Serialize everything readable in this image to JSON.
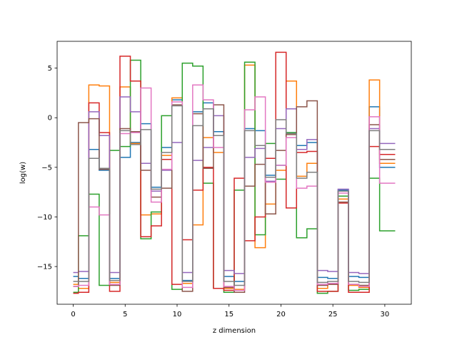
{
  "chart_data": {
    "type": "line",
    "drawstyle": "steps-mid",
    "title": "",
    "xlabel": "z dimension",
    "ylabel": "log(w)",
    "xlim": [
      -1.55,
      32.55
    ],
    "ylim": [
      -18.8,
      7.7
    ],
    "xticks": [
      0,
      5,
      10,
      15,
      20,
      25,
      30
    ],
    "yticks": [
      -15,
      -10,
      -5,
      0,
      5
    ],
    "ytick_labels": [
      "−15",
      "−10",
      "−5",
      "0",
      "5"
    ],
    "grid": false,
    "x": [
      0,
      1,
      2,
      3,
      4,
      5,
      6,
      7,
      8,
      9,
      10,
      11,
      12,
      13,
      14,
      15,
      16,
      17,
      18,
      19,
      20,
      21,
      22,
      23,
      24,
      25,
      26,
      27,
      28,
      29,
      30,
      31
    ],
    "series": [
      {
        "color": "#1f77b4",
        "values": [
          -16.0,
          -16.2,
          -3.2,
          -5.3,
          -16.2,
          -4.0,
          -2.5,
          -0.6,
          -7.0,
          -3.0,
          1.8,
          -16.4,
          0.6,
          1.5,
          -1.4,
          -16.0,
          -16.5,
          -1.1,
          -1.3,
          -5.8,
          -4.8,
          -1.5,
          -2.8,
          -2.5,
          -16.1,
          -16.2,
          -7.3,
          -16.0,
          -16.1,
          1.1,
          -5.0,
          -5.0
        ]
      },
      {
        "color": "#ff7f0e",
        "values": [
          -16.8,
          -17.2,
          3.3,
          3.2,
          -16.6,
          3.1,
          -2.6,
          -9.8,
          -9.7,
          -3.8,
          2.0,
          -16.7,
          -10.8,
          -2.0,
          -3.5,
          -17.2,
          -17.3,
          5.3,
          -13.1,
          -8.7,
          -5.3,
          3.7,
          -5.9,
          -4.6,
          -17.2,
          -16.8,
          -8.2,
          -16.9,
          -17.1,
          3.8,
          -4.6,
          -4.6
        ]
      },
      {
        "color": "#2ca02c",
        "values": [
          -17.6,
          -11.9,
          -7.7,
          -16.9,
          -3.3,
          -2.9,
          5.8,
          -12.2,
          -9.5,
          0.2,
          -17.3,
          5.5,
          5.2,
          -6.6,
          -17.2,
          -17.6,
          -7.3,
          5.6,
          -11.8,
          -2.6,
          -6.2,
          -1.5,
          -12.1,
          -11.2,
          -17.7,
          -17.5,
          -7.9,
          -17.4,
          -17.3,
          -6.1,
          -11.4,
          -11.4
        ]
      },
      {
        "color": "#d62728",
        "values": [
          -17.7,
          -17.6,
          1.5,
          -1.5,
          -17.5,
          6.2,
          3.7,
          -12.0,
          -10.9,
          -4.2,
          -16.8,
          -12.3,
          -7.3,
          -5.0,
          -17.2,
          -17.4,
          -6.1,
          -12.4,
          -10.0,
          -4.1,
          6.6,
          -9.1,
          -3.5,
          -3.4,
          -17.5,
          -17.5,
          -8.6,
          -17.6,
          -17.6,
          -2.9,
          -3.7,
          -3.7
        ]
      },
      {
        "color": "#9467bd",
        "values": [
          -15.6,
          -15.5,
          0.6,
          -1.8,
          -15.6,
          2.1,
          0.6,
          -4.6,
          -7.4,
          -5.3,
          -2.5,
          -15.6,
          -4.3,
          -3.0,
          0.2,
          -15.4,
          -15.7,
          -4.0,
          -3.1,
          -6.4,
          -1.1,
          0.9,
          -3.2,
          -2.2,
          -15.4,
          -15.5,
          -7.2,
          -15.6,
          -15.7,
          -1.1,
          -2.6,
          -2.6
        ]
      },
      {
        "color": "#8c564b",
        "values": [
          -17.0,
          -0.5,
          -0.1,
          -5.2,
          -16.9,
          -1.1,
          -1.4,
          -5.3,
          -8.0,
          -7.1,
          1.3,
          -17.5,
          0.4,
          -5.1,
          1.3,
          -17.1,
          -17.6,
          -6.9,
          -4.7,
          -9.7,
          -3.3,
          -1.7,
          1.1,
          1.7,
          -16.9,
          -16.8,
          -8.5,
          -16.8,
          -16.9,
          -0.7,
          -4.2,
          -4.2
        ]
      },
      {
        "color": "#e377c2",
        "values": [
          -17.0,
          -16.9,
          -9.0,
          -9.8,
          -16.8,
          -1.6,
          -1.5,
          3.0,
          -8.5,
          -5.2,
          1.6,
          -17.1,
          3.3,
          1.8,
          -3.0,
          -17.0,
          -17.4,
          0.8,
          2.1,
          -6.5,
          -4.8,
          -2.0,
          -7.1,
          -6.9,
          -16.8,
          -16.7,
          -7.6,
          -16.8,
          -17.0,
          0.1,
          -6.6,
          -6.6
        ]
      },
      {
        "color": "#7f7f7f",
        "values": [
          -16.5,
          -16.5,
          -4.1,
          -5.1,
          -16.4,
          -1.3,
          -2.7,
          -1.2,
          -7.2,
          -3.5,
          1.2,
          -16.5,
          -0.8,
          0.9,
          -1.8,
          -16.5,
          -16.9,
          -1.3,
          -2.8,
          -6.0,
          -0.2,
          -1.6,
          -6.1,
          -5.5,
          -16.6,
          -16.5,
          -7.4,
          -16.5,
          -16.6,
          -1.3,
          -3.2,
          -3.2
        ]
      }
    ]
  }
}
